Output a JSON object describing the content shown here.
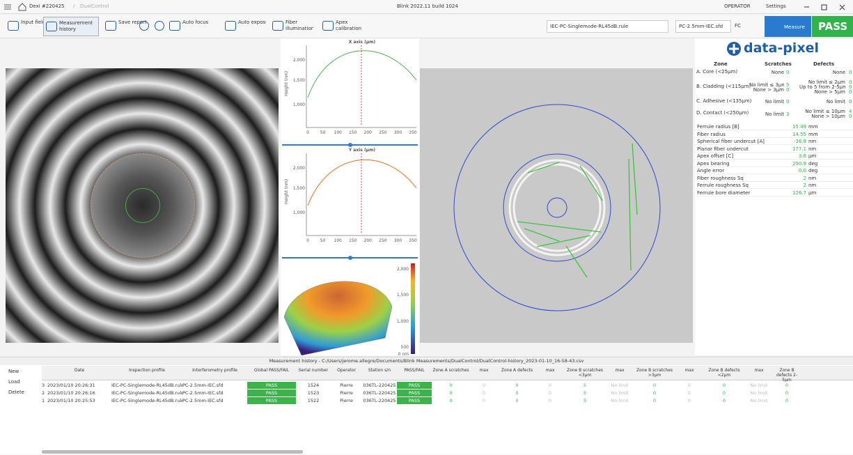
{
  "header": {
    "workspace": "Dexi #220425",
    "context": "DualControl",
    "app_version": "Blink 2022.11 build 1024",
    "user": "OPERATOR",
    "settings": "Settings"
  },
  "toolbar": {
    "buttons": [
      "Input fields",
      "Measurement history",
      "Save report",
      "Auto focus",
      "Auto exposure",
      "Fiber illumination",
      "Apex calibration"
    ],
    "rule_file": "IEC-PC-Singlemode-RL45dB.rule",
    "interferometry_file": "PC-2.5mm-IEC.sfd",
    "connector": "FC",
    "measure": "Measure",
    "result": "PASS"
  },
  "x_axis_plot": {
    "title": "X axis (µm)",
    "y_label": "Height (nm)",
    "yticks": [
      "1,000",
      "1,500",
      "2,000"
    ],
    "xticks": [
      "0",
      "50",
      "100",
      "150",
      "200",
      "250",
      "300",
      "350"
    ]
  },
  "y_axis_plot": {
    "title": "Y axis (µm)",
    "y_label": "Height (nm)",
    "yticks": [
      "1,000",
      "1,500",
      "2,000"
    ],
    "xticks": [
      "0",
      "50",
      "100",
      "150",
      "200",
      "250",
      "300",
      "350"
    ]
  },
  "surface_plot": {
    "colorbar_ticks": [
      "0 nm",
      "500",
      "1,000",
      "1,500",
      "2,000"
    ]
  },
  "brand": "data-pixel",
  "zones": {
    "headers": [
      "Zone",
      "Scratches",
      "Defects"
    ],
    "rows": [
      {
        "zone": "A. Core (<25µm)",
        "scratches": [
          [
            "None",
            "0"
          ]
        ],
        "defects": [
          [
            "None",
            "0"
          ]
        ]
      },
      {
        "zone": "B. Cladding (<115µm)",
        "scratches": [
          [
            "No limit ≤ 3µm",
            "5"
          ],
          [
            "None > 3µm",
            "0"
          ]
        ],
        "defects": [
          [
            "No limit ≤ 2µm",
            "0"
          ],
          [
            "Up to 5 from 2-5µm",
            "0"
          ],
          [
            "None > 5µm",
            "0"
          ]
        ]
      },
      {
        "zone": "C. Adhesive (<135µm)",
        "scratches": [
          [
            "No limit",
            "0"
          ]
        ],
        "defects": [
          [
            "No limit",
            "0"
          ]
        ]
      },
      {
        "zone": "D. Contact (<250µm)",
        "scratches": [
          [
            "No limit",
            "3"
          ]
        ],
        "defects": [
          [
            "No limit ≤ 10µm",
            "4"
          ],
          [
            "None > 10µm",
            "0"
          ]
        ]
      }
    ]
  },
  "parameters": [
    [
      "Ferrule radius [B]",
      "15.49",
      "mm"
    ],
    [
      "Fiber radius",
      "14.55",
      "mm"
    ],
    [
      "Spherical fiber undercut [A]",
      "-36.9",
      "nm"
    ],
    [
      "Planar fiber undercut",
      "177.1",
      "nm"
    ],
    [
      "Apex offset [C]",
      "3.6",
      "µm"
    ],
    [
      "Apex bearing",
      "290.9",
      "deg"
    ],
    [
      "Angle error",
      "0.0",
      "deg"
    ],
    [
      "Fiber roughness Sq",
      "2",
      "nm"
    ],
    [
      "Ferrule roughness Sq",
      "2",
      "nm"
    ],
    [
      "Ferrule bore diameter",
      "126.7",
      "µm"
    ]
  ],
  "history": {
    "title": "Measurement history - C:/Users/jerome.allegre/Documents/Blink Measurements/DualControl/DualControl-history_2023-01-10_16-58-43.csv",
    "actions": [
      "New",
      "Load",
      "Delete"
    ],
    "columns": [
      "Date",
      "Inspection profile",
      "Interferometry profile",
      "Global PASS/FAIL",
      "Serial number",
      "Operator",
      "Station s/n",
      "PASS/FAIL",
      "Zone A scratches",
      "max",
      "Zone A defects",
      "max",
      "Zone B scratches <3µm",
      "max",
      "Zone B scratches >3µm",
      "max",
      "Zone B defects <2µm",
      "max",
      "Zone B defects 2-5µm"
    ],
    "rows": [
      [
        "3",
        "2023/01/10 20:26:31",
        "IEC-PC-Singlemode-RL45dB.rule",
        "PC-2.5mm-IEC.sfd",
        "PASS",
        "1524",
        "Pierre",
        "036TL-220425",
        "PASS",
        "0",
        "0",
        "0",
        "0",
        "5",
        "No limit",
        "0",
        "0",
        "0",
        "No limit",
        "0"
      ],
      [
        "2",
        "2023/01/10 20:26:16",
        "IEC-PC-Singlemode-RL45dB.rule",
        "PC-2.5mm-IEC.sfd",
        "PASS",
        "1523",
        "Pierre",
        "036TL-220425",
        "PASS",
        "0",
        "0",
        "0",
        "0",
        "5",
        "No limit",
        "0",
        "0",
        "0",
        "No limit",
        "0"
      ],
      [
        "1",
        "2023/01/10 20:25:53",
        "IEC-PC-Singlemode-RL45dB.rule",
        "PC-2.5mm-IEC.sfd",
        "PASS",
        "1522",
        "Pierre",
        "036TL-220425",
        "PASS",
        "0",
        "0",
        "0",
        "0",
        "5",
        "No limit",
        "0",
        "0",
        "0",
        "No limit",
        "0"
      ]
    ]
  }
}
